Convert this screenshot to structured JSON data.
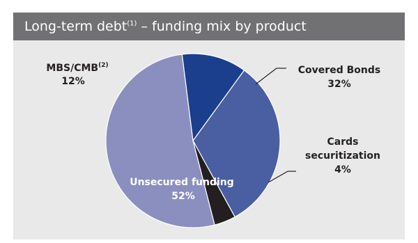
{
  "header": {
    "title_main": "Long-term debt",
    "title_sup": "(1)",
    "title_rest": " – funding mix by product"
  },
  "colors": {
    "header_bg": "#717072",
    "panel_bg": "#e9e9ea",
    "covered_bonds": "#4a5fa2",
    "cards_securitization": "#231f20",
    "unsecured_funding": "#8a8fbf",
    "mbs_cmb": "#1b3f8c"
  },
  "chart_data": {
    "type": "pie",
    "slices": [
      {
        "label": "Covered Bonds",
        "label_sup": "",
        "value": 32,
        "value_text": "32%"
      },
      {
        "label": "Cards securitization",
        "label_sup": "",
        "value": 4,
        "value_text": "4%"
      },
      {
        "label": "Unsecured funding",
        "label_sup": "",
        "value": 52,
        "value_text": "52%"
      },
      {
        "label": "MBS/CMB",
        "label_sup": "(2)",
        "value": 12,
        "value_text": "12%"
      }
    ]
  }
}
